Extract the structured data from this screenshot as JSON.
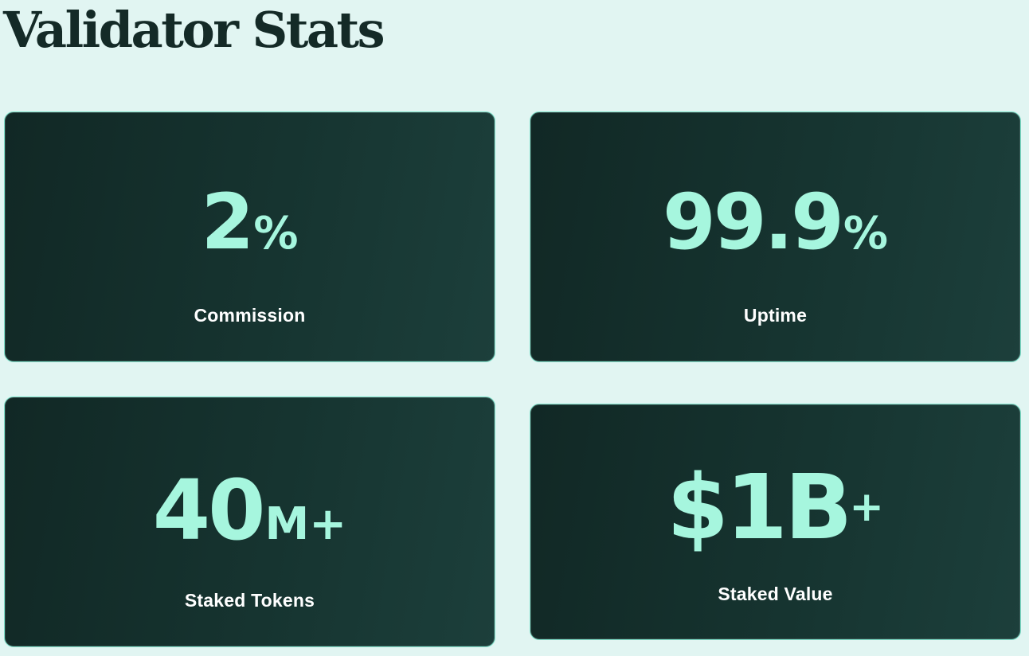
{
  "page": {
    "title": "Validator Stats"
  },
  "stats": [
    {
      "value": "2",
      "suffix": "%",
      "label": "Commission"
    },
    {
      "value": "99.9",
      "suffix": "%",
      "label": "Uptime"
    },
    {
      "value": "40",
      "suffix": "M+",
      "label": "Staked Tokens"
    },
    {
      "value": "$1B",
      "suffix": "+",
      "label": "Staked Value"
    }
  ],
  "colors": {
    "background": "#e1f5f2",
    "title": "#142a27",
    "card": "#163430",
    "accent": "#a6f6de",
    "label": "#ffffff"
  }
}
